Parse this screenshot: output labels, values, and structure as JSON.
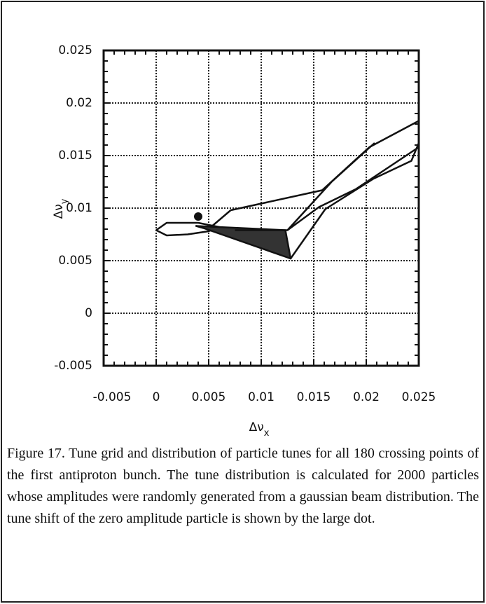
{
  "chart_data": {
    "type": "line",
    "xlabel": {
      "main": "Δν",
      "sub": "x"
    },
    "ylabel": {
      "main": "Δν",
      "sub": "y"
    },
    "xlim": [
      -0.005,
      0.025
    ],
    "xticks": [
      -0.005,
      0,
      0.005,
      0.01,
      0.015,
      0.02,
      0.025
    ],
    "ylim": [
      -0.005,
      0.025
    ],
    "yticks": [
      -0.005,
      0,
      0.005,
      0.01,
      0.015,
      0.02,
      0.025
    ],
    "grid": true,
    "series": [
      {
        "color": "#111111",
        "x": [
          0.0,
          0.001,
          0.003,
          0.005,
          0.006,
          0.004,
          0.001,
          0.0
        ],
        "values": [
          0.0079,
          0.0074,
          0.0075,
          0.0078,
          0.0082,
          0.0086,
          0.0086,
          0.0079
        ]
      },
      {
        "color": "#111111",
        "x": [
          0.0051,
          0.0071,
          0.0158,
          0.0203,
          0.025
        ],
        "values": [
          0.0081,
          0.0098,
          0.0117,
          0.0158,
          0.0183
        ]
      },
      {
        "color": "#111111",
        "x": [
          0.0066,
          0.0128,
          0.0161,
          0.0207,
          0.0243,
          0.025
        ],
        "values": [
          0.0079,
          0.0052,
          0.0099,
          0.0128,
          0.0145,
          0.0162
        ]
      },
      {
        "color": "#111111",
        "fill": "#333333",
        "x": [
          0.0038,
          0.0123,
          0.0128,
          0.0045
        ],
        "values": [
          0.0083,
          0.0079,
          0.0052,
          0.0081
        ]
      },
      {
        "color": "#111111",
        "x": [
          0.0075,
          0.0125,
          0.0167,
          0.0208
        ],
        "values": [
          0.0079,
          0.0079,
          0.0125,
          0.0162
        ]
      },
      {
        "color": "#111111",
        "x": [
          0.0125,
          0.0155,
          0.019,
          0.025
        ],
        "values": [
          0.0079,
          0.0101,
          0.0118,
          0.0158
        ]
      }
    ],
    "marker": {
      "x": 0.004,
      "y": 0.0092
    }
  },
  "caption": "Figure 17. Tune grid and distribution of particle tunes for all 180 crossing points of the first antiproton bunch. The tune distribution is calculated for 2000 particles whose amplitudes were randomly generated from a gaussian beam distribution. The tune shift of the zero amplitude particle is shown by the large dot."
}
